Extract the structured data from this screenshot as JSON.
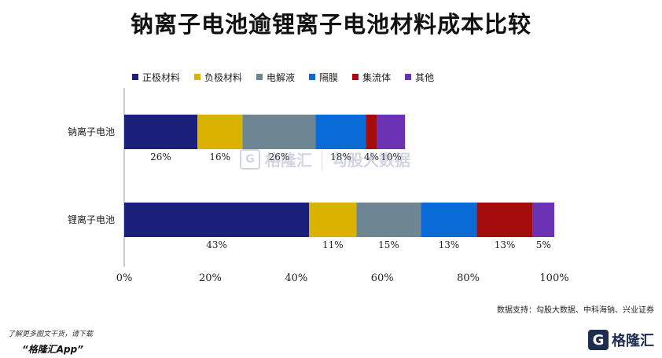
{
  "title": "钠离子电池逾锂离子电池材料成本比较",
  "source": "数据支持：勾股大数据、中科海钠、兴业证券",
  "footer": {
    "note": "了解更多图文干货，请下载",
    "app": "“格隆汇App”"
  },
  "brand": {
    "mark": "G",
    "name": "格隆汇"
  },
  "watermark": {
    "mark": "G",
    "name": "格隆汇",
    "name2": "勾股大数据"
  },
  "chart_data": {
    "type": "bar",
    "orientation": "horizontal",
    "stacked": true,
    "categories": [
      "钠离子电池",
      "锂离子电池"
    ],
    "series": [
      {
        "name": "正极材料",
        "color": "#1a1f7a",
        "values": [
          17,
          43
        ],
        "labels": [
          "26%",
          "43%"
        ]
      },
      {
        "name": "负极材料",
        "color": "#d9b300",
        "values": [
          10.5,
          11
        ],
        "labels": [
          "16%",
          "11%"
        ]
      },
      {
        "name": "电解液",
        "color": "#6e8594",
        "values": [
          17,
          15
        ],
        "labels": [
          "26%",
          "15%"
        ]
      },
      {
        "name": "隔膜",
        "color": "#0a6ad6",
        "values": [
          11.7,
          13
        ],
        "labels": [
          "18%",
          "13%"
        ]
      },
      {
        "name": "集流体",
        "color": "#a50c0c",
        "values": [
          2.6,
          13
        ],
        "labels": [
          "4%",
          "13%"
        ]
      },
      {
        "name": "其他",
        "color": "#6b32b3",
        "values": [
          6.5,
          5
        ],
        "labels": [
          "10%",
          "5%"
        ]
      }
    ],
    "x_ticks": [
      "0%",
      "20%",
      "40%",
      "60%",
      "80%",
      "100%"
    ],
    "xlim": [
      0,
      100
    ],
    "legend_position": "top",
    "grid": false
  }
}
